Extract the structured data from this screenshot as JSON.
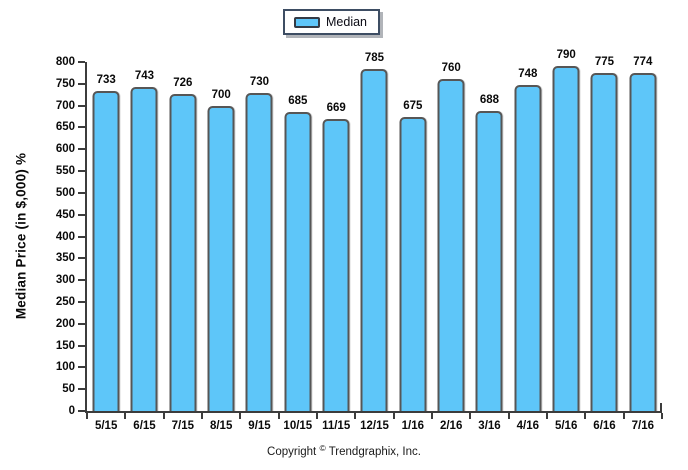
{
  "legend": {
    "label": "Median"
  },
  "y_axis": {
    "title": "Median Price (in $,000) %"
  },
  "copyright": {
    "prefix": "Copyright",
    "symbol": "©",
    "suffix": "Trendgraphix, Inc."
  },
  "colors": {
    "bar_fill": "#5EC6F9",
    "bar_border": "#565656",
    "axis": "#3C3C3C",
    "legend_border": "#3D4D63",
    "label_text": "#0A0A0A"
  },
  "chart_data": {
    "type": "bar",
    "title": "",
    "xlabel": "",
    "ylabel": "Median Price (in $,000) %",
    "categories": [
      "5/15",
      "6/15",
      "7/15",
      "8/15",
      "9/15",
      "10/15",
      "11/15",
      "12/15",
      "1/16",
      "2/16",
      "3/16",
      "4/16",
      "5/16",
      "6/16",
      "7/16"
    ],
    "series": [
      {
        "name": "Median",
        "values": [
          733,
          743,
          726,
          700,
          730,
          685,
          669,
          785,
          675,
          760,
          688,
          748,
          790,
          775,
          774
        ]
      }
    ],
    "ylim": [
      0,
      800
    ],
    "ytick_step": 50,
    "grid": false,
    "legend_position": "top-center",
    "bar_value_labels": true
  }
}
